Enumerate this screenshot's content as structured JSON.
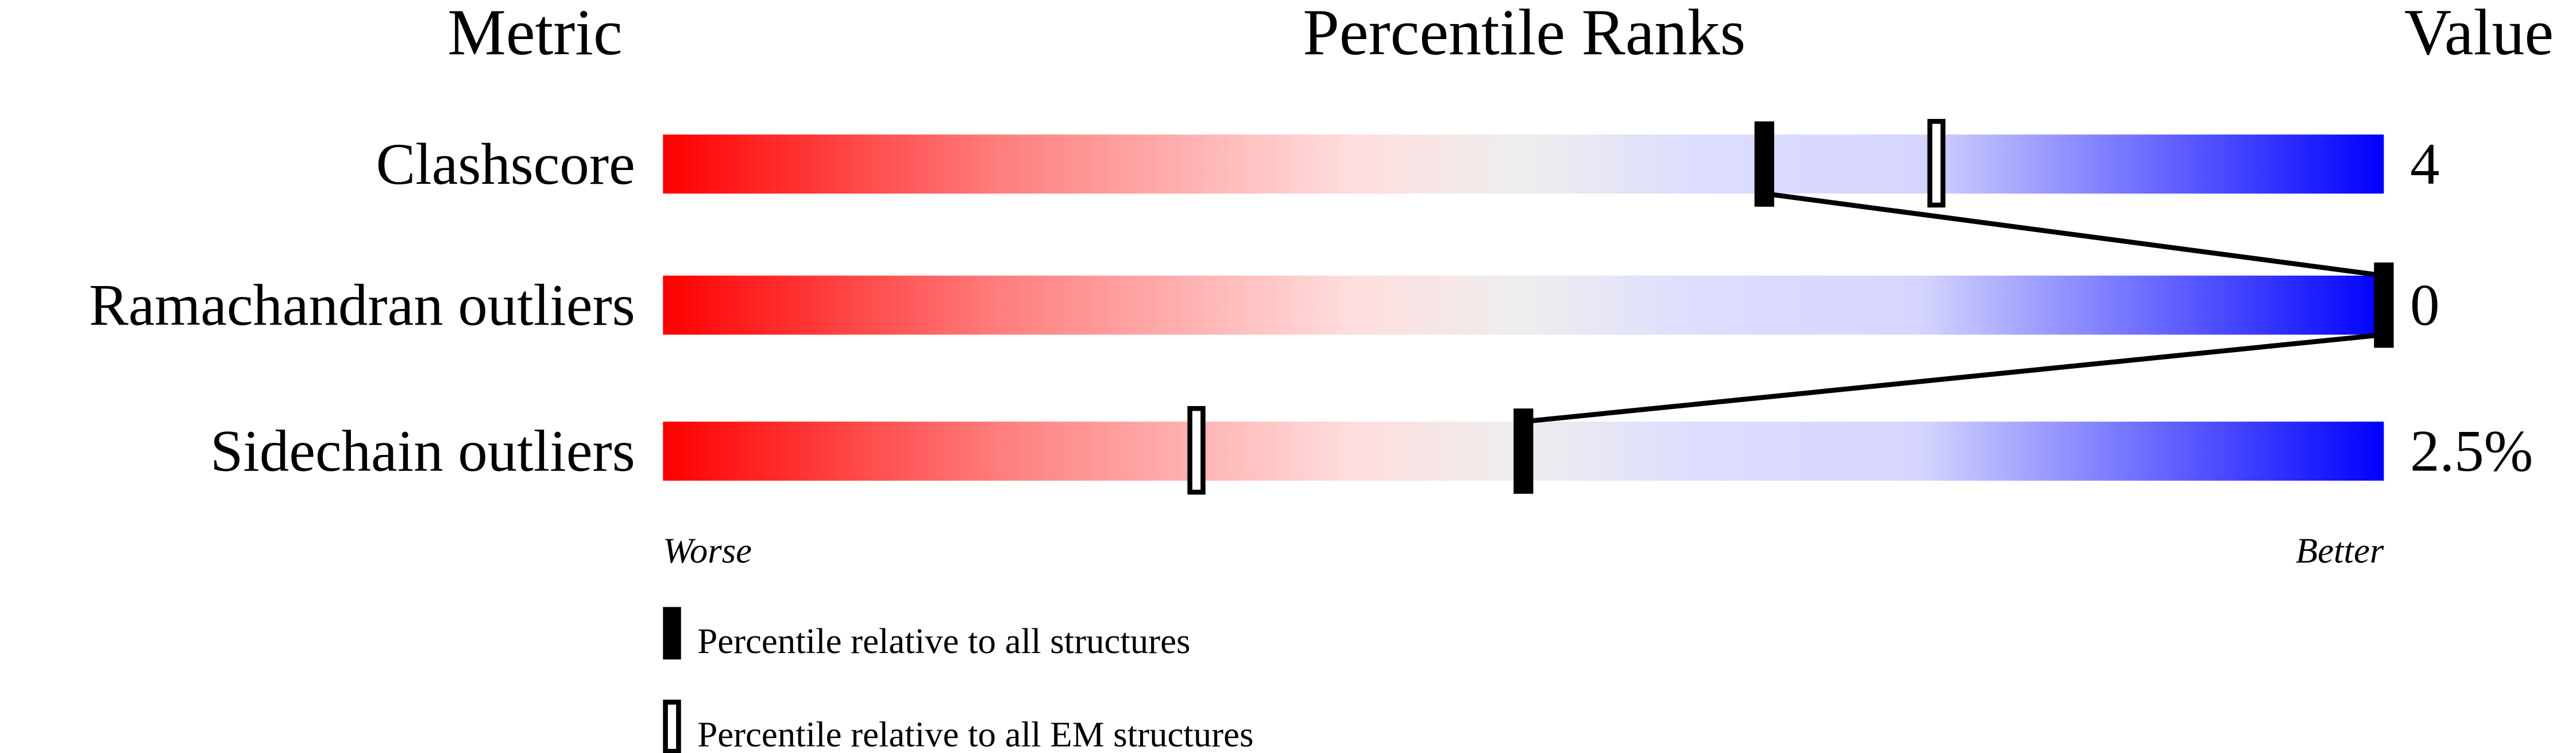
{
  "chart_data": {
    "type": "percentile-bar",
    "headers": {
      "metric": "Metric",
      "ranks": "Percentile Ranks",
      "value": "Value"
    },
    "xlim": [
      0,
      100
    ],
    "axis_labels": {
      "left": "Worse",
      "right": "Better"
    },
    "gradient_colors": [
      "#ff0000",
      "#ff8080",
      "#ffdddd",
      "#eeeeee",
      "#ddddff",
      "#d5d5ff",
      "#0000ff"
    ],
    "metrics": [
      {
        "name": "Clashscore",
        "value": "4",
        "percentile_all": 64,
        "percentile_em": 74
      },
      {
        "name": "Ramachandran outliers",
        "value": "0",
        "percentile_all": 100,
        "percentile_em": 100
      },
      {
        "name": "Sidechain outliers",
        "value": "2.5%",
        "percentile_all": 50,
        "percentile_em": 31
      }
    ],
    "legend": [
      {
        "marker": "filled",
        "label": "Percentile relative to all structures"
      },
      {
        "marker": "open",
        "label": "Percentile relative to all EM structures"
      }
    ]
  }
}
